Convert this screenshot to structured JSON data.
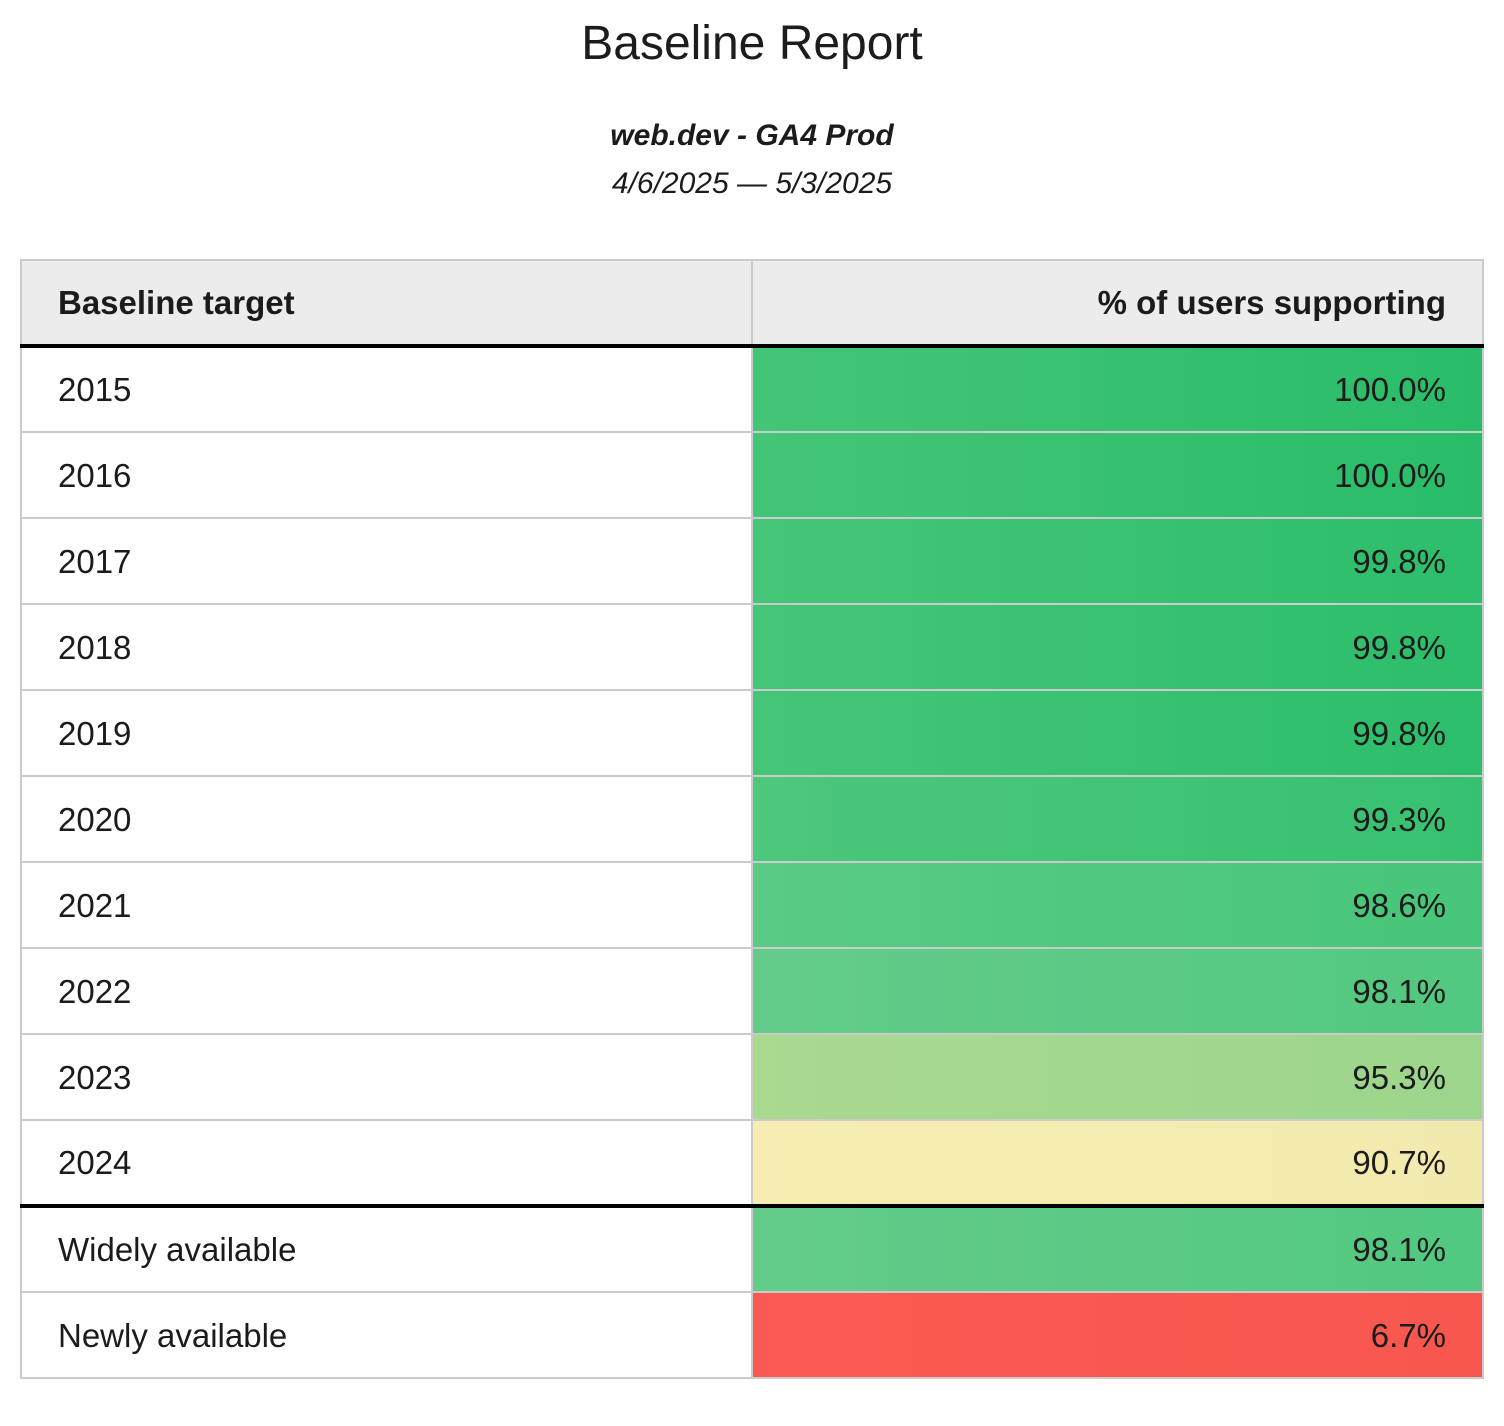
{
  "page": {
    "title": "Baseline Report",
    "subtitle": "web.dev - GA4 Prod",
    "date_range": "4/6/2025 — 5/3/2025"
  },
  "theme": {
    "header_bg": "#ececec",
    "row_border": "#cbcbcb",
    "section_border": "#000000",
    "text": "#1b1b1b",
    "page_bg": "#ffffff",
    "green_high": "#2dbe6b",
    "green_mid": "#5aca84",
    "green_low": "#a3d78e",
    "yellow_warn": "#f5ecb0",
    "red_bad": "#f95851"
  },
  "table": {
    "columns": [
      {
        "label": "Baseline target"
      },
      {
        "label": "% of users supporting"
      }
    ],
    "rows": [
      {
        "target": "2015",
        "value": "100.0%",
        "bg_left": "#43c577",
        "bg_right": "#29bd69",
        "section_end": false
      },
      {
        "target": "2016",
        "value": "100.0%",
        "bg_left": "#43c577",
        "bg_right": "#29bd69",
        "section_end": false
      },
      {
        "target": "2017",
        "value": "99.8%",
        "bg_left": "#45c578",
        "bg_right": "#2cbe6b",
        "section_end": false
      },
      {
        "target": "2018",
        "value": "99.8%",
        "bg_left": "#45c578",
        "bg_right": "#2cbe6b",
        "section_end": false
      },
      {
        "target": "2019",
        "value": "99.8%",
        "bg_left": "#45c578",
        "bg_right": "#2cbe6b",
        "section_end": false
      },
      {
        "target": "2020",
        "value": "99.3%",
        "bg_left": "#4dc77c",
        "bg_right": "#36c170",
        "section_end": false
      },
      {
        "target": "2021",
        "value": "98.6%",
        "bg_left": "#5aca84",
        "bg_right": "#47c679",
        "section_end": false
      },
      {
        "target": "2022",
        "value": "98.1%",
        "bg_left": "#64cc8a",
        "bg_right": "#52c880",
        "section_end": false
      },
      {
        "target": "2023",
        "value": "95.3%",
        "bg_left": "#aad990",
        "bg_right": "#9cd58c",
        "section_end": false
      },
      {
        "target": "2024",
        "value": "90.7%",
        "bg_left": "#f7edb3",
        "bg_right": "#f2eaad",
        "section_end": true
      },
      {
        "target": "Widely available",
        "value": "98.1%",
        "bg_left": "#64cc8a",
        "bg_right": "#52c880",
        "section_end": false
      },
      {
        "target": "Newly available",
        "value": "6.7%",
        "bg_left": "#fa5a53",
        "bg_right": "#f85750",
        "section_end": false
      }
    ]
  }
}
